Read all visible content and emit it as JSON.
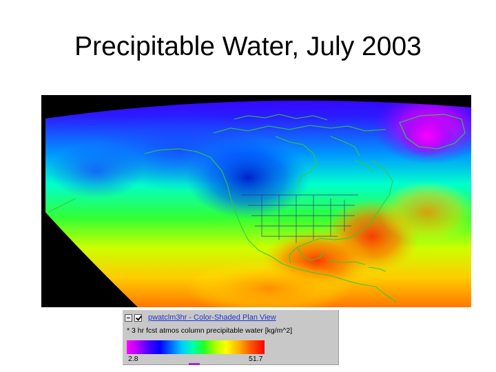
{
  "slide": {
    "title": "Precipitable Water, July 2003"
  },
  "legend": {
    "title": "pwatclm3hr - Color-Shaded Plan View",
    "description": "* 3 hr fcst atmos column precipitable water [kg/m^2]",
    "min_label": "2.8",
    "max_label": "51.7",
    "colorscale": [
      "#ff00ff",
      "#4a00ff",
      "#0000ff",
      "#00ccff",
      "#00ffaa",
      "#22ff22",
      "#ffff00",
      "#ffaa00",
      "#ff0000"
    ],
    "icons": [
      "collapse-icon",
      "visibility-checkbox-icon"
    ]
  },
  "colors": {
    "land_outline": "#33cc33",
    "state_borders": "#2a2a8a",
    "background": "#000000"
  }
}
